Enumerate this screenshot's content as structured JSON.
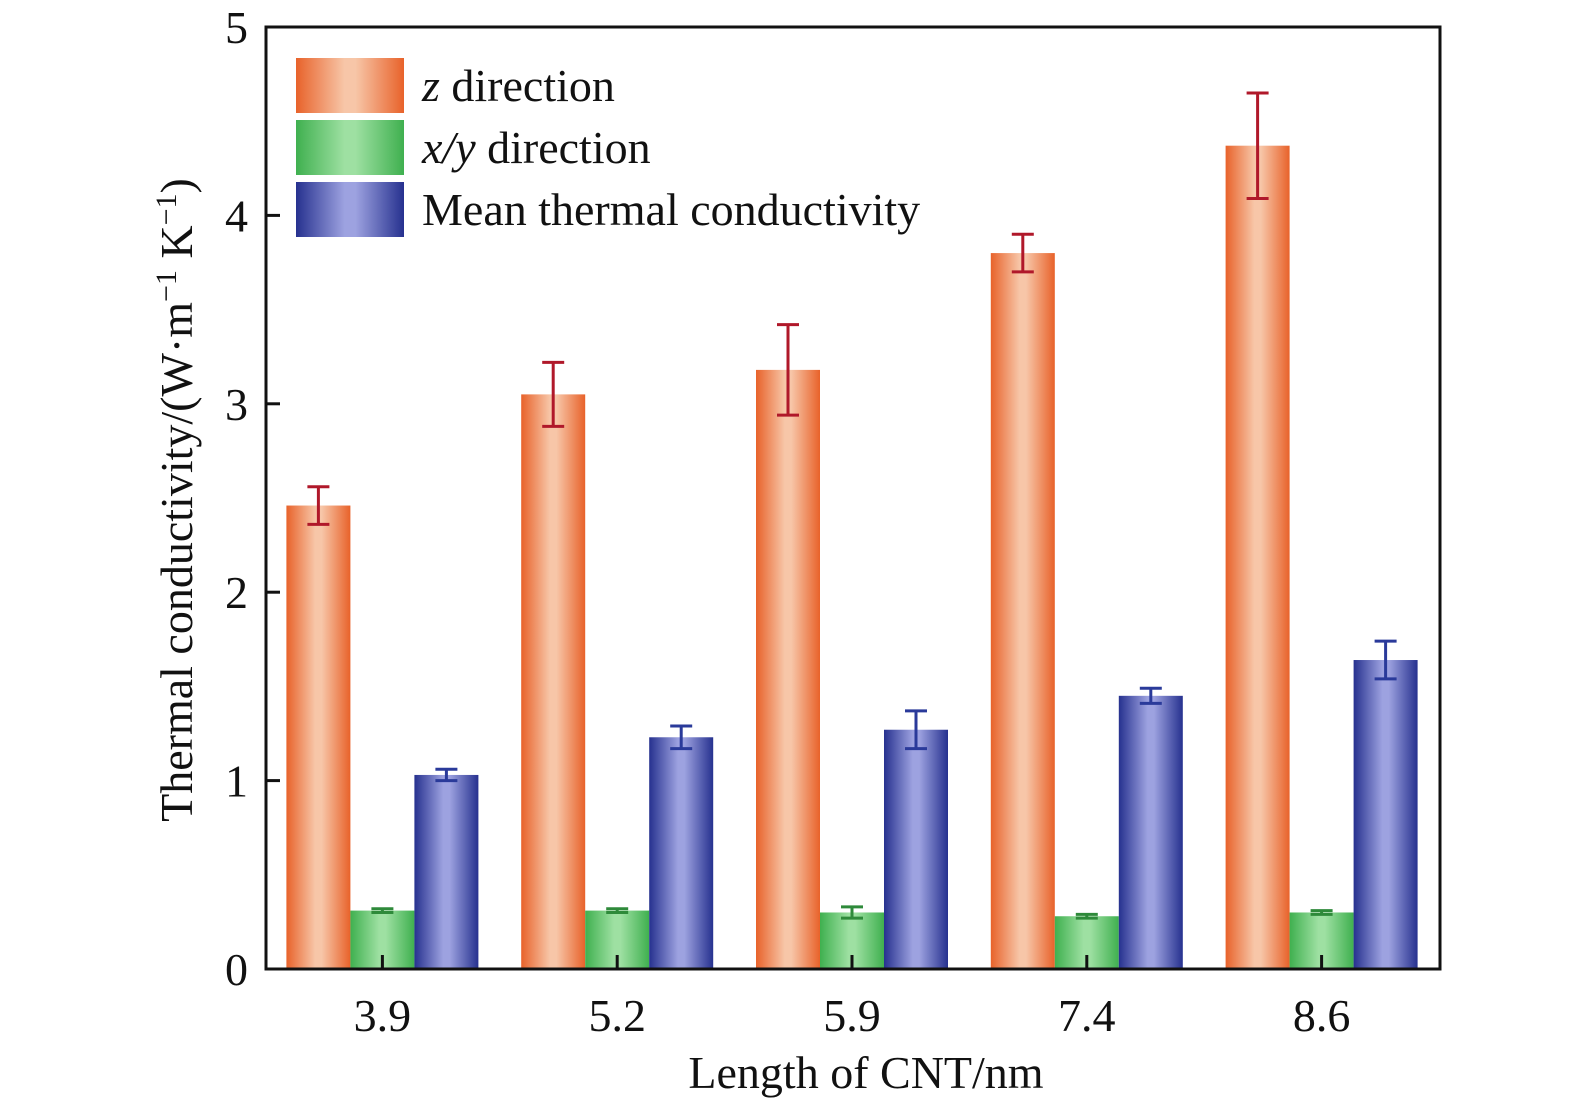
{
  "chart_data": {
    "type": "bar",
    "title": "",
    "xlabel": "Length of CNT/nm",
    "ylabel": "Thermal conductivity/(W·m⁻¹ K⁻¹)",
    "ylabel_parts": {
      "main": "Thermal conductivity/(W·m",
      "sup1": "−1",
      "mid": " K",
      "sup2": "−1",
      "end": ")"
    },
    "categories": [
      "3.9",
      "5.2",
      "5.9",
      "7.4",
      "8.6"
    ],
    "ylim": [
      0,
      5
    ],
    "yticks": [
      "0",
      "1",
      "2",
      "3",
      "4",
      "5"
    ],
    "grid": false,
    "legend_position": "top-left",
    "series": [
      {
        "name": "z direction",
        "name_italic": "z",
        "name_rest": " direction",
        "color": "#e8622a",
        "light": "#f7c6a8",
        "err_color": "#b0182a",
        "values": [
          2.46,
          3.05,
          3.18,
          3.8,
          4.37
        ],
        "errors": [
          0.1,
          0.17,
          0.24,
          0.1,
          0.28
        ]
      },
      {
        "name": "x/y direction",
        "name_italic": "x/y",
        "name_rest": " direction",
        "color": "#3fb04f",
        "light": "#9ee0a2",
        "err_color": "#2e8a3a",
        "values": [
          0.31,
          0.31,
          0.3,
          0.28,
          0.3
        ],
        "errors": [
          0.01,
          0.01,
          0.03,
          0.01,
          0.01
        ]
      },
      {
        "name": "Mean thermal conductivity",
        "name_italic": "",
        "name_rest": "Mean thermal conductivity",
        "color": "#26318f",
        "light": "#9da2e0",
        "err_color": "#2a3a9a",
        "values": [
          1.03,
          1.23,
          1.27,
          1.45,
          1.64
        ],
        "errors": [
          0.03,
          0.06,
          0.1,
          0.04,
          0.1
        ]
      }
    ]
  }
}
